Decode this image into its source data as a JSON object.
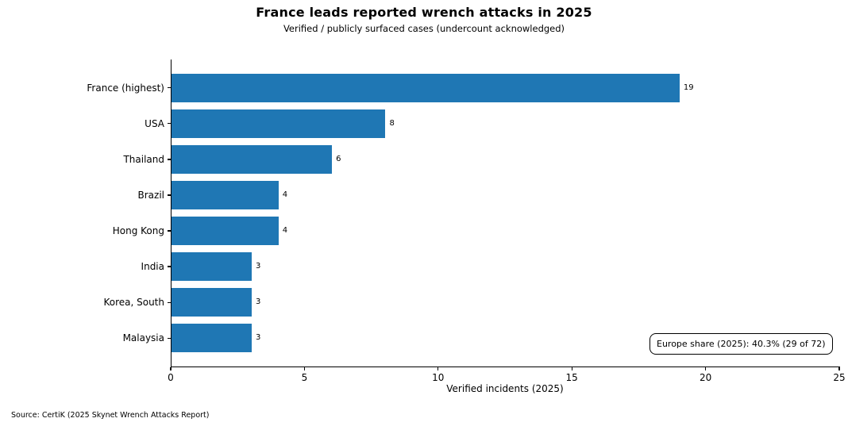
{
  "chart_data": {
    "type": "bar",
    "orientation": "horizontal",
    "title": "France leads reported wrench attacks in 2025",
    "subtitle": "Verified / publicly surfaced cases (undercount acknowledged)",
    "categories": [
      "France (highest)",
      "USA",
      "Thailand",
      "Brazil",
      "Hong Kong",
      "India",
      "Korea, South",
      "Malaysia"
    ],
    "values": [
      19,
      8,
      6,
      4,
      4,
      3,
      3,
      3
    ],
    "xlabel": "Verified incidents (2025)",
    "ylabel": "",
    "xlim": [
      0,
      25
    ],
    "xticks": [
      0,
      5,
      10,
      15,
      20,
      25
    ],
    "grid": false,
    "legend": false,
    "bar_color": "#1f77b4",
    "annotation": "Europe share (2025): 40.3% (29 of 72)",
    "source": "Source: CertiK (2025 Skynet Wrench Attacks Report)"
  }
}
